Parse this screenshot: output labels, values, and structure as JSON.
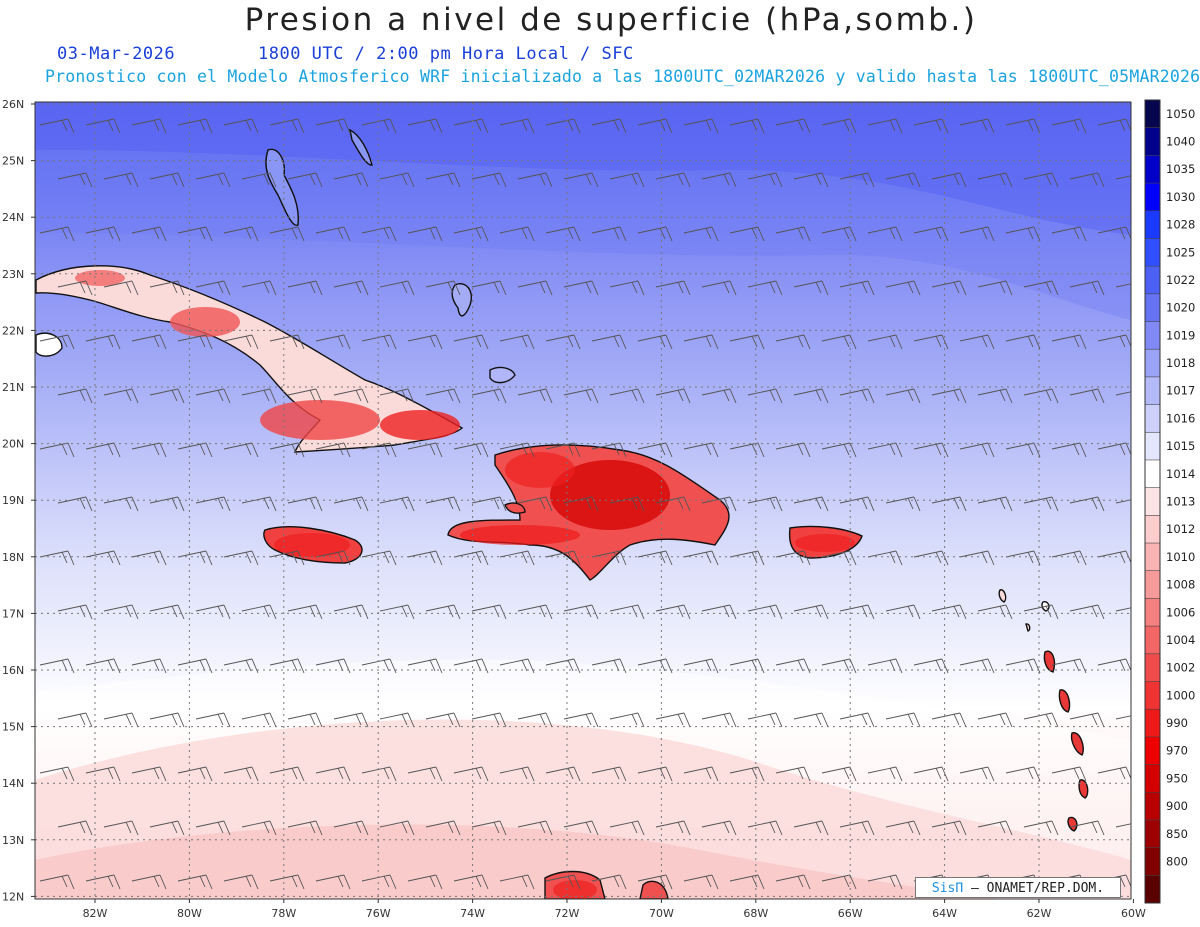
{
  "header": {
    "title": "Presion a nivel de superficie (hPa,somb.)",
    "date": "03-Mar-2026",
    "time": "1800 UTC / 2:00 pm Hora Local / SFC",
    "subtitle": "Pronostico con el Modelo Atmosferico WRF inicializado a las 1800UTC_02MAR2026 y valido hasta las  1800UTC_05MAR2026"
  },
  "axes": {
    "lat_labels": [
      "26N",
      "25N",
      "24N",
      "23N",
      "22N",
      "21N",
      "20N",
      "19N",
      "18N",
      "17N",
      "16N",
      "15N",
      "14N",
      "13N",
      "12N"
    ],
    "lon_labels": [
      "82W",
      "80W",
      "78W",
      "76W",
      "74W",
      "72W",
      "70W",
      "68W",
      "66W",
      "64W",
      "62W",
      "60W"
    ]
  },
  "colorbar": {
    "levels": [
      {
        "label": "1050",
        "color": "#06064e"
      },
      {
        "label": "1040",
        "color": "#00008b"
      },
      {
        "label": "1035",
        "color": "#0000c8"
      },
      {
        "label": "1030",
        "color": "#0000ff"
      },
      {
        "label": "1028",
        "color": "#1a3aff"
      },
      {
        "label": "1025",
        "color": "#3050ff"
      },
      {
        "label": "1022",
        "color": "#4c60f4"
      },
      {
        "label": "1020",
        "color": "#6673f2"
      },
      {
        "label": "1019",
        "color": "#8089f4"
      },
      {
        "label": "1018",
        "color": "#9aa3f6"
      },
      {
        "label": "1017",
        "color": "#b4baf8"
      },
      {
        "label": "1016",
        "color": "#ccd0fa"
      },
      {
        "label": "1015",
        "color": "#e3e6fc"
      },
      {
        "label": "1014",
        "color": "#ffffff"
      },
      {
        "label": "1013",
        "color": "#fde4e4"
      },
      {
        "label": "1012",
        "color": "#fbcdcd"
      },
      {
        "label": "1010",
        "color": "#f9b3b3"
      },
      {
        "label": "1008",
        "color": "#f79a9a"
      },
      {
        "label": "1006",
        "color": "#f58080"
      },
      {
        "label": "1004",
        "color": "#f36666"
      },
      {
        "label": "1002",
        "color": "#f14c4c"
      },
      {
        "label": "1000",
        "color": "#f03333"
      },
      {
        "label": "990",
        "color": "#ee1a1a"
      },
      {
        "label": "970",
        "color": "#ee0000"
      },
      {
        "label": "950",
        "color": "#d40000"
      },
      {
        "label": "900",
        "color": "#b80000"
      },
      {
        "label": "850",
        "color": "#9c0000"
      },
      {
        "label": "800",
        "color": "#800000"
      },
      {
        "label": "",
        "color": "#5a0000"
      }
    ]
  },
  "credit": {
    "brand": "SisΠ",
    "text": "– ONAMET/REP.DOM."
  }
}
